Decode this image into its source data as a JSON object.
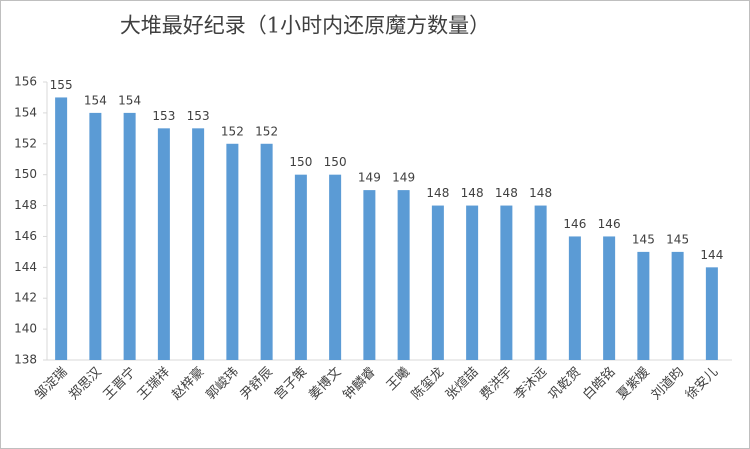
{
  "chart_data": {
    "type": "bar",
    "title": "大堆最好纪录（1小时内还原魔方数量）",
    "categories": [
      "邹淀瑞",
      "郑思汉",
      "王晋宁",
      "王瑞祥",
      "赵梓豪",
      "郭峻玮",
      "尹舒辰",
      "宫子策",
      "姜博文",
      "钟麟睿",
      "王曦",
      "陈玺龙",
      "张煊喆",
      "费洪宇",
      "李沐远",
      "巩乾贺",
      "白皓铭",
      "夏紫媛",
      "刘道昀",
      "徐安儿"
    ],
    "values": [
      155,
      154,
      154,
      153,
      153,
      152,
      152,
      150,
      150,
      149,
      149,
      148,
      148,
      148,
      148,
      146,
      146,
      145,
      145,
      144
    ],
    "color": "#5b9bd5",
    "ylim": [
      138,
      156
    ],
    "yticks": [
      138,
      140,
      142,
      144,
      146,
      148,
      150,
      152,
      154,
      156
    ],
    "grid": false
  }
}
